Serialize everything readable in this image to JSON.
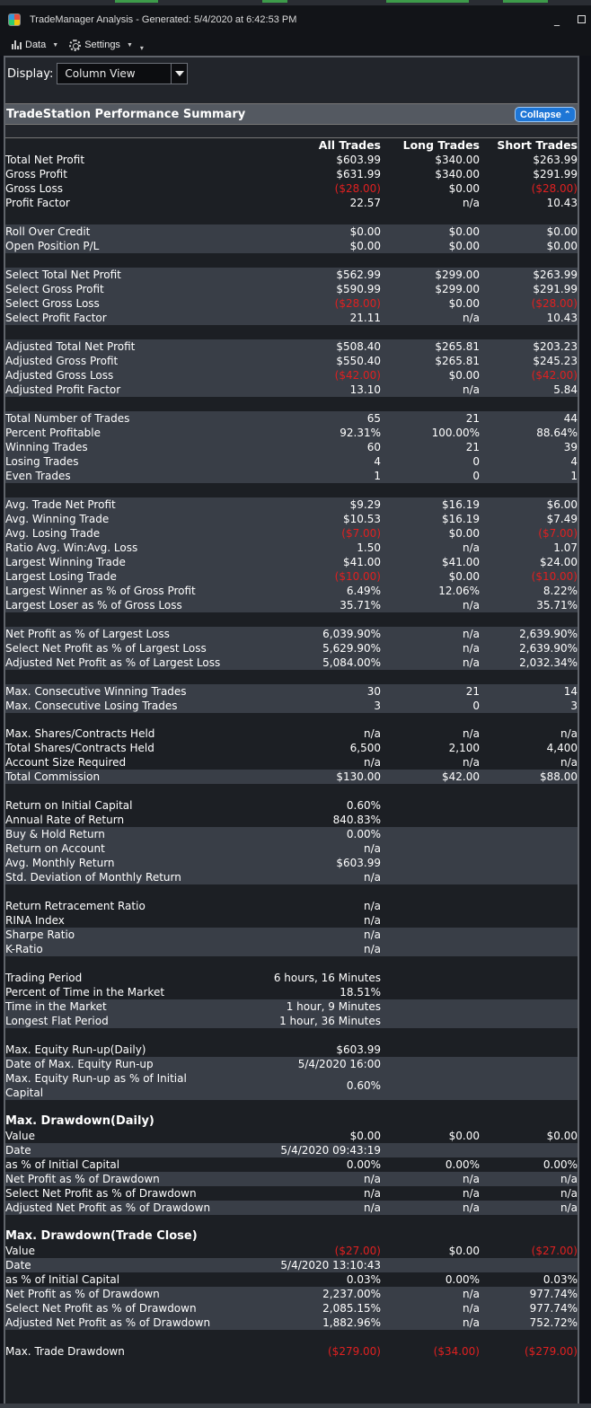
{
  "window": {
    "title": "TradeManager Analysis - Generated: 5/4/2020 at 6:42:53 PM",
    "minimize_glyph": "_"
  },
  "menu": {
    "data_label": "Data",
    "settings_label": "Settings"
  },
  "display": {
    "label": "Display:",
    "value": "Column View"
  },
  "section": {
    "title": "TradeStation Performance Summary",
    "collapse_label": "Collapse"
  },
  "columns": [
    "All Trades",
    "Long Trades",
    "Short Trades"
  ],
  "rows": [
    {
      "label": "Total Net Profit",
      "v": [
        "$603.99",
        "$340.00",
        "$263.99"
      ]
    },
    {
      "label": "Gross Profit",
      "v": [
        "$631.99",
        "$340.00",
        "$291.99"
      ]
    },
    {
      "label": "Gross Loss",
      "v": [
        "($28.00)",
        "$0.00",
        "($28.00)"
      ],
      "neg": [
        true,
        false,
        true
      ]
    },
    {
      "label": "Profit Factor",
      "v": [
        "22.57",
        "n/a",
        "10.43"
      ]
    },
    {
      "label": "Roll Over Credit",
      "v": [
        "$0.00",
        "$0.00",
        "$0.00"
      ]
    },
    {
      "label": "Open Position P/L",
      "v": [
        "$0.00",
        "$0.00",
        "$0.00"
      ]
    },
    {
      "label": "Select Total Net Profit",
      "v": [
        "$562.99",
        "$299.00",
        "$263.99"
      ]
    },
    {
      "label": "Select Gross Profit",
      "v": [
        "$590.99",
        "$299.00",
        "$291.99"
      ]
    },
    {
      "label": "Select Gross Loss",
      "v": [
        "($28.00)",
        "$0.00",
        "($28.00)"
      ],
      "neg": [
        true,
        false,
        true
      ]
    },
    {
      "label": "Select Profit Factor",
      "v": [
        "21.11",
        "n/a",
        "10.43"
      ]
    },
    {
      "label": "Adjusted Total Net Profit",
      "v": [
        "$508.40",
        "$265.81",
        "$203.23"
      ]
    },
    {
      "label": "Adjusted Gross Profit",
      "v": [
        "$550.40",
        "$265.81",
        "$245.23"
      ]
    },
    {
      "label": "Adjusted Gross Loss",
      "v": [
        "($42.00)",
        "$0.00",
        "($42.00)"
      ],
      "neg": [
        true,
        false,
        true
      ]
    },
    {
      "label": "Adjusted Profit Factor",
      "v": [
        "13.10",
        "n/a",
        "5.84"
      ]
    },
    {
      "label": "Total Number of Trades",
      "v": [
        "65",
        "21",
        "44"
      ]
    },
    {
      "label": "Percent Profitable",
      "v": [
        "92.31%",
        "100.00%",
        "88.64%"
      ]
    },
    {
      "label": "Winning Trades",
      "v": [
        "60",
        "21",
        "39"
      ]
    },
    {
      "label": "Losing Trades",
      "v": [
        "4",
        "0",
        "4"
      ]
    },
    {
      "label": "Even Trades",
      "v": [
        "1",
        "0",
        "1"
      ]
    },
    {
      "label": "Avg. Trade Net Profit",
      "v": [
        "$9.29",
        "$16.19",
        "$6.00"
      ]
    },
    {
      "label": "Avg. Winning Trade",
      "v": [
        "$10.53",
        "$16.19",
        "$7.49"
      ]
    },
    {
      "label": "Avg. Losing Trade",
      "v": [
        "($7.00)",
        "$0.00",
        "($7.00)"
      ],
      "neg": [
        true,
        false,
        true
      ]
    },
    {
      "label": "Ratio Avg. Win:Avg. Loss",
      "v": [
        "1.50",
        "n/a",
        "1.07"
      ]
    },
    {
      "label": "Largest Winning Trade",
      "v": [
        "$41.00",
        "$41.00",
        "$24.00"
      ]
    },
    {
      "label": "Largest Losing Trade",
      "v": [
        "($10.00)",
        "$0.00",
        "($10.00)"
      ],
      "neg": [
        true,
        false,
        true
      ]
    },
    {
      "label": "Largest Winner as % of Gross Profit",
      "v": [
        "6.49%",
        "12.06%",
        "8.22%"
      ]
    },
    {
      "label": "Largest Loser as % of Gross Loss",
      "v": [
        "35.71%",
        "n/a",
        "35.71%"
      ]
    },
    {
      "label": "Net Profit as % of Largest Loss",
      "v": [
        "6,039.90%",
        "n/a",
        "2,639.90%"
      ]
    },
    {
      "label": "Select Net Profit as % of Largest Loss",
      "v": [
        "5,629.90%",
        "n/a",
        "2,639.90%"
      ]
    },
    {
      "label": "Adjusted Net Profit as % of Largest Loss",
      "v": [
        "5,084.00%",
        "n/a",
        "2,032.34%"
      ]
    },
    {
      "label": "Max. Consecutive Winning Trades",
      "v": [
        "30",
        "21",
        "14"
      ]
    },
    {
      "label": "Max. Consecutive Losing Trades",
      "v": [
        "3",
        "0",
        "3"
      ]
    },
    {
      "label": "Max. Shares/Contracts Held",
      "v": [
        "n/a",
        "n/a",
        "n/a"
      ]
    },
    {
      "label": "Total Shares/Contracts Held",
      "v": [
        "6,500",
        "2,100",
        "4,400"
      ]
    },
    {
      "label": "Account Size Required",
      "v": [
        "n/a",
        "n/a",
        "n/a"
      ]
    },
    {
      "label": "Total Commission",
      "v": [
        "$130.00",
        "$42.00",
        "$88.00"
      ]
    },
    {
      "label": "Return on Initial Capital",
      "v": [
        "0.60%",
        "",
        ""
      ]
    },
    {
      "label": "Annual Rate of Return",
      "v": [
        "840.83%",
        "",
        ""
      ]
    },
    {
      "label": "Buy & Hold Return",
      "v": [
        "0.00%",
        "",
        ""
      ]
    },
    {
      "label": "Return on Account",
      "v": [
        "n/a",
        "",
        ""
      ]
    },
    {
      "label": "Avg. Monthly Return",
      "v": [
        "$603.99",
        "",
        ""
      ]
    },
    {
      "label": "Std. Deviation of Monthly Return",
      "v": [
        "n/a",
        "",
        ""
      ]
    },
    {
      "label": "Return Retracement Ratio",
      "v": [
        "n/a",
        "",
        ""
      ]
    },
    {
      "label": "RINA Index",
      "v": [
        "n/a",
        "",
        ""
      ]
    },
    {
      "label": "Sharpe Ratio",
      "v": [
        "n/a",
        "",
        ""
      ]
    },
    {
      "label": "K-Ratio",
      "v": [
        "n/a",
        "",
        ""
      ]
    },
    {
      "label": "Trading Period",
      "v": [
        "6 hours, 16 Minutes",
        "",
        ""
      ]
    },
    {
      "label": "Percent of Time in the Market",
      "v": [
        "18.51%",
        "",
        ""
      ]
    },
    {
      "label": "Time in the Market",
      "v": [
        "1 hour, 9 Minutes",
        "",
        ""
      ]
    },
    {
      "label": "Longest Flat Period",
      "v": [
        "1 hour, 36 Minutes",
        "",
        ""
      ]
    },
    {
      "label": "Max. Equity Run-up(Daily)",
      "v": [
        "$603.99",
        "",
        ""
      ]
    },
    {
      "label": "Date of Max. Equity Run-up",
      "v": [
        "5/4/2020 16:00",
        "",
        ""
      ]
    },
    {
      "label": "Max. Equity Run-up as % of Initial Capital",
      "v": [
        "0.60%",
        "",
        ""
      ]
    },
    {
      "label": "Max. Drawdown(Daily)",
      "v": [
        "",
        "",
        ""
      ]
    },
    {
      "label": "Value",
      "v": [
        "$0.00",
        "$0.00",
        "$0.00"
      ]
    },
    {
      "label": "Date",
      "v": [
        "5/4/2020 09:43:19",
        "",
        ""
      ]
    },
    {
      "label": "as % of Initial Capital",
      "v": [
        "0.00%",
        "0.00%",
        "0.00%"
      ]
    },
    {
      "label": "Net Profit as % of Drawdown",
      "v": [
        "n/a",
        "n/a",
        "n/a"
      ]
    },
    {
      "label": "Select Net Profit as % of Drawdown",
      "v": [
        "n/a",
        "n/a",
        "n/a"
      ]
    },
    {
      "label": "Adjusted Net Profit as % of Drawdown",
      "v": [
        "n/a",
        "n/a",
        "n/a"
      ]
    },
    {
      "label": "Max. Drawdown(Trade Close)",
      "v": [
        "",
        "",
        ""
      ]
    },
    {
      "label": "Value",
      "v": [
        "($27.00)",
        "$0.00",
        "($27.00)"
      ],
      "neg": [
        true,
        false,
        true
      ]
    },
    {
      "label": "Date",
      "v": [
        "5/4/2020 13:10:43",
        "",
        ""
      ]
    },
    {
      "label": "as % of Initial Capital",
      "v": [
        "0.03%",
        "0.00%",
        "0.03%"
      ]
    },
    {
      "label": "Net Profit as % of Drawdown",
      "v": [
        "2,237.00%",
        "n/a",
        "977.74%"
      ]
    },
    {
      "label": "Select Net Profit as % of Drawdown",
      "v": [
        "2,085.15%",
        "n/a",
        "977.74%"
      ]
    },
    {
      "label": "Adjusted Net Profit as % of Drawdown",
      "v": [
        "1,882.96%",
        "n/a",
        "752.72%"
      ]
    },
    {
      "label": "Max. Trade Drawdown",
      "v": [
        "($279.00)",
        "($34.00)",
        "($279.00)"
      ],
      "neg": [
        true,
        true,
        true
      ]
    }
  ]
}
